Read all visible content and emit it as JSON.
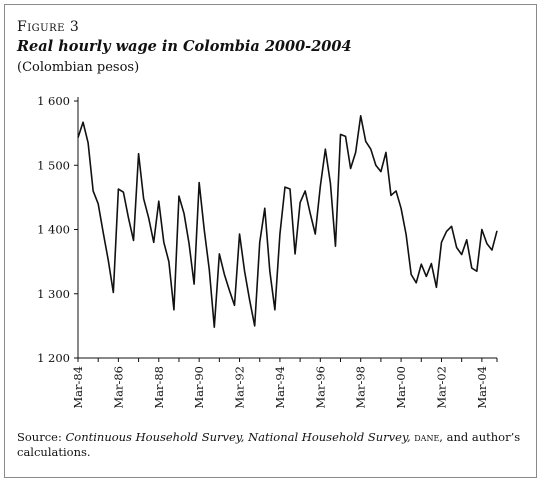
{
  "figure": {
    "label": "Figure 3",
    "title": "Real hourly wage in Colombia 2000-2004",
    "subtitle": "(Colombian pesos)"
  },
  "source": {
    "prefix": "Source: ",
    "surveys": "Continuous Household Survey, National Household Survey,",
    "agency": "dane",
    "suffix": ", and author’s calculations."
  },
  "chart_data": {
    "type": "line",
    "title": "Real hourly wage in Colombia 2000-2004",
    "xlabel": "",
    "ylabel": "",
    "ylim": [
      1200,
      1600
    ],
    "yticks": [
      1200,
      1300,
      1400,
      1500,
      1600
    ],
    "ytick_labels": [
      "1 200",
      "1 300",
      "1 400",
      "1 500",
      "1 600"
    ],
    "xtick_labels": [
      "Mar-84",
      "Mar-86",
      "Mar-88",
      "Mar-90",
      "Mar-92",
      "Mar-94",
      "Mar-96",
      "Mar-98",
      "Mar-00",
      "Mar-02",
      "Mar-04"
    ],
    "x_start_year": 1984,
    "x_end_year": 2004.75,
    "grid": false,
    "legend": "none",
    "line_color": "#111111",
    "series": [
      {
        "values": [
          [
            1984.0,
            1543
          ],
          [
            1984.25,
            1567
          ],
          [
            1984.5,
            1535
          ],
          [
            1984.75,
            1460
          ],
          [
            1985.0,
            1440
          ],
          [
            1985.25,
            1395
          ],
          [
            1985.5,
            1352
          ],
          [
            1985.75,
            1302
          ],
          [
            1986.0,
            1463
          ],
          [
            1986.25,
            1458
          ],
          [
            1986.5,
            1418
          ],
          [
            1986.75,
            1383
          ],
          [
            1987.0,
            1518
          ],
          [
            1987.25,
            1448
          ],
          [
            1987.5,
            1418
          ],
          [
            1987.75,
            1380
          ],
          [
            1988.0,
            1444
          ],
          [
            1988.25,
            1380
          ],
          [
            1988.5,
            1350
          ],
          [
            1988.75,
            1275
          ],
          [
            1989.0,
            1452
          ],
          [
            1989.25,
            1425
          ],
          [
            1989.5,
            1378
          ],
          [
            1989.75,
            1315
          ],
          [
            1990.0,
            1473
          ],
          [
            1990.25,
            1400
          ],
          [
            1990.5,
            1338
          ],
          [
            1990.75,
            1248
          ],
          [
            1991.0,
            1362
          ],
          [
            1991.25,
            1330
          ],
          [
            1991.5,
            1305
          ],
          [
            1991.75,
            1282
          ],
          [
            1992.0,
            1393
          ],
          [
            1992.25,
            1335
          ],
          [
            1992.5,
            1290
          ],
          [
            1992.75,
            1250
          ],
          [
            1993.0,
            1380
          ],
          [
            1993.25,
            1433
          ],
          [
            1993.5,
            1335
          ],
          [
            1993.75,
            1275
          ],
          [
            1994.0,
            1393
          ],
          [
            1994.25,
            1466
          ],
          [
            1994.5,
            1463
          ],
          [
            1994.75,
            1362
          ],
          [
            1995.0,
            1442
          ],
          [
            1995.25,
            1460
          ],
          [
            1995.5,
            1425
          ],
          [
            1995.75,
            1393
          ],
          [
            1996.0,
            1467
          ],
          [
            1996.25,
            1525
          ],
          [
            1996.5,
            1472
          ],
          [
            1996.75,
            1374
          ],
          [
            1997.0,
            1548
          ],
          [
            1997.25,
            1545
          ],
          [
            1997.5,
            1495
          ],
          [
            1997.75,
            1520
          ],
          [
            1998.0,
            1577
          ],
          [
            1998.25,
            1537
          ],
          [
            1998.5,
            1525
          ],
          [
            1998.75,
            1500
          ],
          [
            1999.0,
            1490
          ],
          [
            1999.25,
            1520
          ],
          [
            1999.5,
            1453
          ],
          [
            1999.75,
            1460
          ],
          [
            2000.0,
            1433
          ],
          [
            2000.25,
            1392
          ],
          [
            2000.5,
            1330
          ],
          [
            2000.75,
            1317
          ],
          [
            2001.0,
            1346
          ],
          [
            2001.25,
            1327
          ],
          [
            2001.5,
            1347
          ],
          [
            2001.75,
            1310
          ],
          [
            2002.0,
            1380
          ],
          [
            2002.25,
            1397
          ],
          [
            2002.5,
            1405
          ],
          [
            2002.75,
            1372
          ],
          [
            2003.0,
            1361
          ],
          [
            2003.25,
            1384
          ],
          [
            2003.5,
            1340
          ],
          [
            2003.75,
            1335
          ],
          [
            2004.0,
            1400
          ],
          [
            2004.25,
            1378
          ],
          [
            2004.5,
            1368
          ],
          [
            2004.75,
            1398
          ]
        ]
      }
    ]
  }
}
